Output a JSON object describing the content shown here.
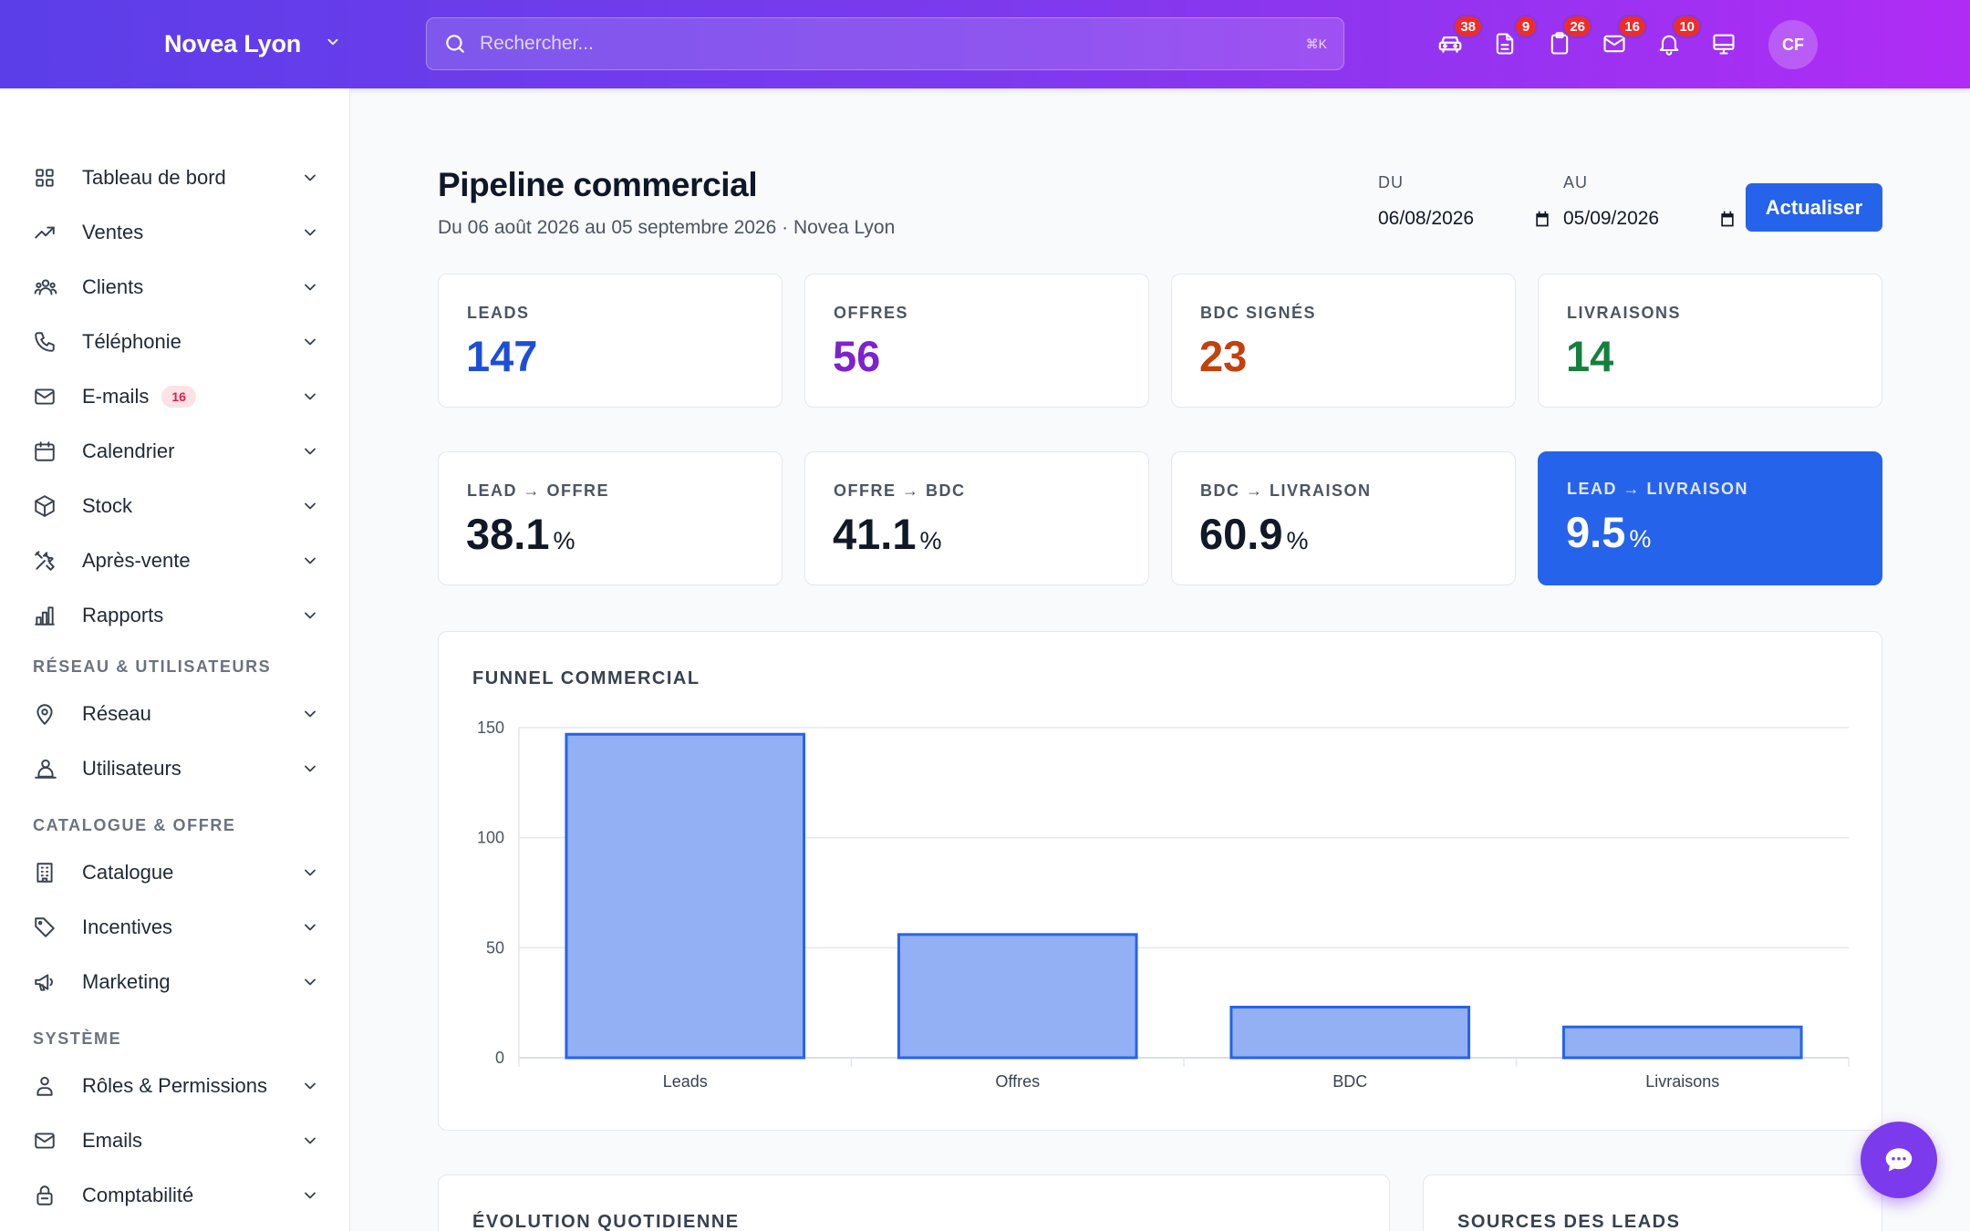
{
  "header": {
    "brand": "Novea Lyon",
    "search_placeholder": "Rechercher...",
    "search_shortcut": "⌘K",
    "icons": [
      {
        "name": "car-icon",
        "badge": "38"
      },
      {
        "name": "document-icon",
        "badge": "9"
      },
      {
        "name": "clipboard-icon",
        "badge": "26"
      },
      {
        "name": "mail-icon",
        "badge": "16"
      },
      {
        "name": "bell-icon",
        "badge": "10"
      },
      {
        "name": "monitor-icon",
        "badge": ""
      }
    ],
    "avatar_initials": "CF"
  },
  "sidebar": {
    "items": [
      {
        "label": "Tableau de bord",
        "icon": "grid-icon"
      },
      {
        "label": "Ventes",
        "icon": "trending-up-icon"
      },
      {
        "label": "Clients",
        "icon": "users-icon"
      },
      {
        "label": "Téléphonie",
        "icon": "phone-icon"
      },
      {
        "label": "E-mails",
        "icon": "mail-icon",
        "badge": "16"
      },
      {
        "label": "Calendrier",
        "icon": "calendar-icon"
      },
      {
        "label": "Stock",
        "icon": "box-icon"
      },
      {
        "label": "Après-vente",
        "icon": "tools-icon"
      },
      {
        "label": "Rapports",
        "icon": "bar-chart-icon"
      }
    ],
    "section_network": "RÉSEAU & UTILISATEURS",
    "network_items": [
      {
        "label": "Réseau",
        "icon": "map-pin-icon"
      },
      {
        "label": "Utilisateurs",
        "icon": "user-group-icon"
      }
    ],
    "section_catalog": "CATALOGUE & OFFRE",
    "catalog_items": [
      {
        "label": "Catalogue",
        "icon": "building-icon"
      },
      {
        "label": "Incentives",
        "icon": "tag-icon"
      },
      {
        "label": "Marketing",
        "icon": "megaphone-icon"
      }
    ],
    "section_system": "SYSTÈME",
    "system_items": [
      {
        "label": "Rôles & Permissions",
        "icon": "user-icon"
      },
      {
        "label": "Emails",
        "icon": "mail-icon"
      },
      {
        "label": "Comptabilité",
        "icon": "lock-icon"
      }
    ]
  },
  "main": {
    "title": "Pipeline commercial",
    "subtitle": "Du 06 août 2026 au 05 septembre 2026 · Novea Lyon",
    "date_from_label": "DU",
    "date_from": "06/08/2026",
    "date_to_label": "AU",
    "date_to": "05/09/2026",
    "refresh_label": "Actualiser",
    "kpis": [
      {
        "label": "LEADS",
        "value": "147",
        "color": "#1d4ed8"
      },
      {
        "label": "OFFRES",
        "value": "56",
        "color": "#7e22ce"
      },
      {
        "label": "BDC SIGNÉS",
        "value": "23",
        "color": "#c2410c"
      },
      {
        "label": "LIVRAISONS",
        "value": "14",
        "color": "#15803d"
      }
    ],
    "rates": [
      {
        "label": "LEAD → OFFRE",
        "value": "38.1",
        "unit": "%"
      },
      {
        "label": "OFFRE → BDC",
        "value": "41.1",
        "unit": "%"
      },
      {
        "label": "BDC → LIVRAISON",
        "value": "60.9",
        "unit": "%"
      },
      {
        "label": "LEAD → LIVRAISON",
        "value": "9.5",
        "unit": "%"
      }
    ],
    "funnel_title": "FUNNEL COMMERCIAL",
    "evolution_title": "ÉVOLUTION QUOTIDIENNE",
    "sources_title": "SOURCES DES LEADS"
  },
  "chart_data": {
    "type": "bar",
    "title": "FUNNEL COMMERCIAL",
    "categories": [
      "Leads",
      "Offres",
      "BDC",
      "Livraisons"
    ],
    "values": [
      147,
      56,
      23,
      14
    ],
    "ylim": [
      0,
      150
    ],
    "yticks": [
      0,
      50,
      100,
      150
    ],
    "grid": true,
    "bar_fill": "#94b0f5",
    "bar_stroke": "#2563eb"
  }
}
